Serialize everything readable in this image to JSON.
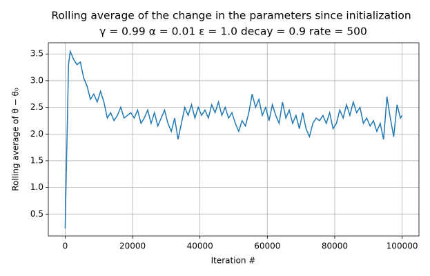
{
  "chart_data": {
    "type": "line",
    "title": "Rolling average of the change in the parameters since initialization",
    "subtitle": "γ = 0.99 α = 0.01 ε = 1.0 decay = 0.9 rate = 500",
    "x_label": "Iteration #",
    "y_label": "Rolling average of θ − θ₀",
    "x": [
      0,
      1000,
      1500,
      2500,
      3500,
      4500,
      5500,
      6500,
      7500,
      8500,
      9500,
      10500,
      11500,
      12500,
      13500,
      14500,
      15500,
      16500,
      17500,
      18500,
      19500,
      20500,
      21500,
      22500,
      23500,
      24500,
      25500,
      26500,
      27500,
      28500,
      29500,
      30500,
      31500,
      32500,
      33500,
      34500,
      35500,
      36500,
      37500,
      38500,
      39500,
      40500,
      41500,
      42500,
      43500,
      44500,
      45500,
      46500,
      47500,
      48500,
      49500,
      50500,
      51500,
      52500,
      53500,
      54500,
      55500,
      56500,
      57500,
      58500,
      59500,
      60500,
      61500,
      62500,
      63500,
      64500,
      65500,
      66500,
      67500,
      68500,
      69500,
      70500,
      71500,
      72500,
      73500,
      74500,
      75500,
      76500,
      77500,
      78500,
      79500,
      80500,
      81500,
      82500,
      83500,
      84500,
      85500,
      86500,
      87500,
      88500,
      89500,
      90500,
      91500,
      92500,
      93500,
      94500,
      95500,
      96500,
      97500,
      98500,
      99500,
      100000
    ],
    "series": [
      {
        "name": "rolling average",
        "color": "#1f77b4",
        "values": [
          0.23,
          3.3,
          3.55,
          3.4,
          3.3,
          3.35,
          3.05,
          2.9,
          2.65,
          2.75,
          2.6,
          2.8,
          2.6,
          2.3,
          2.4,
          2.25,
          2.35,
          2.5,
          2.3,
          2.35,
          2.4,
          2.3,
          2.45,
          2.2,
          2.3,
          2.45,
          2.2,
          2.4,
          2.15,
          2.3,
          2.45,
          2.2,
          2.05,
          2.3,
          1.9,
          2.2,
          2.5,
          2.35,
          2.55,
          2.3,
          2.5,
          2.35,
          2.45,
          2.3,
          2.55,
          2.4,
          2.6,
          2.35,
          2.5,
          2.3,
          2.4,
          2.2,
          2.05,
          2.25,
          2.15,
          2.4,
          2.75,
          2.5,
          2.65,
          2.35,
          2.5,
          2.25,
          2.55,
          2.35,
          2.2,
          2.6,
          2.3,
          2.45,
          2.2,
          2.35,
          2.1,
          2.4,
          2.1,
          1.95,
          2.2,
          2.3,
          2.25,
          2.35,
          2.2,
          2.4,
          2.1,
          2.2,
          2.45,
          2.3,
          2.55,
          2.35,
          2.6,
          2.4,
          2.5,
          2.2,
          2.3,
          2.15,
          2.25,
          2.05,
          2.2,
          1.9,
          2.7,
          2.3,
          1.95,
          2.55,
          2.3,
          2.35
        ]
      }
    ],
    "xlim": [
      -5000,
      105000
    ],
    "ylim": [
      0.09,
      3.71
    ],
    "xticks": [
      0,
      20000,
      40000,
      60000,
      80000,
      100000
    ],
    "yticks": [
      0.5,
      {
        "value": 1,
        "label": "1.0"
      },
      1.5,
      {
        "value": 2,
        "label": "2.0"
      },
      2.5,
      {
        "value": 3,
        "label": "3.0"
      },
      3.5
    ],
    "grid": true
  }
}
